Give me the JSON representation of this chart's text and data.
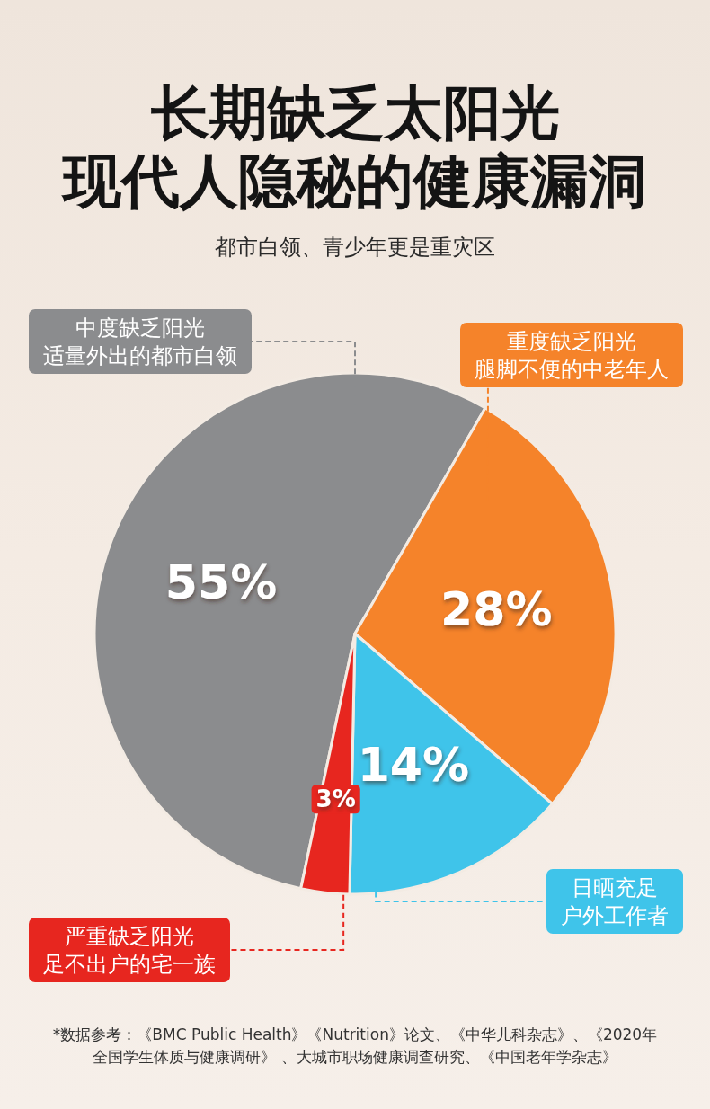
{
  "chart_data": {
    "type": "pie",
    "title": "长期缺乏太阳光现代人隐秘的健康漏洞",
    "subtitle": "都市白领、青少年更是重灾区",
    "categories": [
      "中度缺乏阳光适量外出的都市白领",
      "重度缺乏阳光腿脚不便的中老年人",
      "日晒充足户外工作者",
      "严重缺乏阳光足不出户的宅一族"
    ],
    "values": [
      55,
      28,
      14,
      3
    ],
    "colors": [
      "#8b8c8e",
      "#f5832a",
      "#3fc4ea",
      "#e7261f"
    ],
    "value_labels": [
      "55%",
      "28%",
      "14%",
      "3%"
    ],
    "annotations": [
      "*数据参考：《BMC Public Health》《Nutrition》论文、《中华儿科杂志》、《2020年全国学生体质与健康调研》 、大城市职场健康调查研究、《中国老年学杂志》"
    ]
  }
}
